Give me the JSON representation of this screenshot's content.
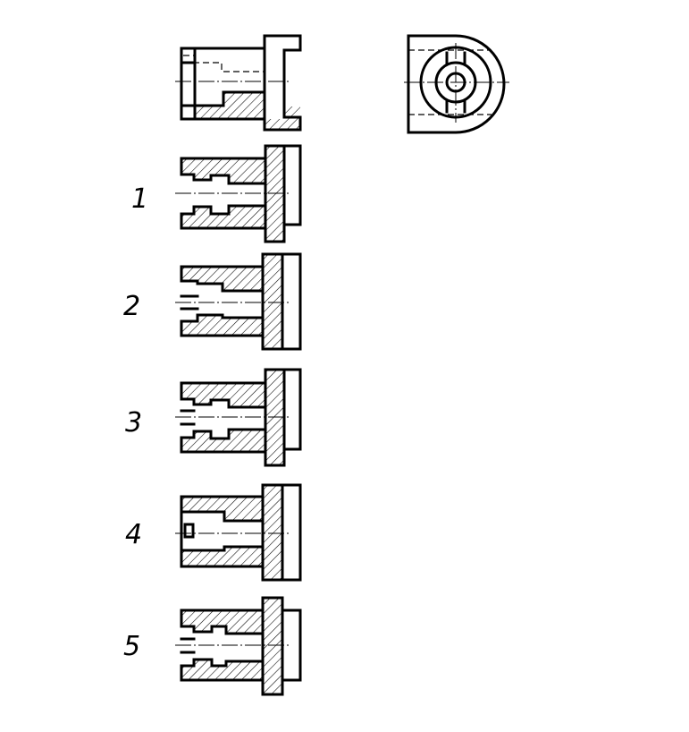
{
  "drawing": {
    "line_color": "#000000",
    "background": "#ffffff",
    "options": [
      {
        "label": "1"
      },
      {
        "label": "2"
      },
      {
        "label": "3"
      },
      {
        "label": "4"
      },
      {
        "label": "5"
      }
    ]
  }
}
